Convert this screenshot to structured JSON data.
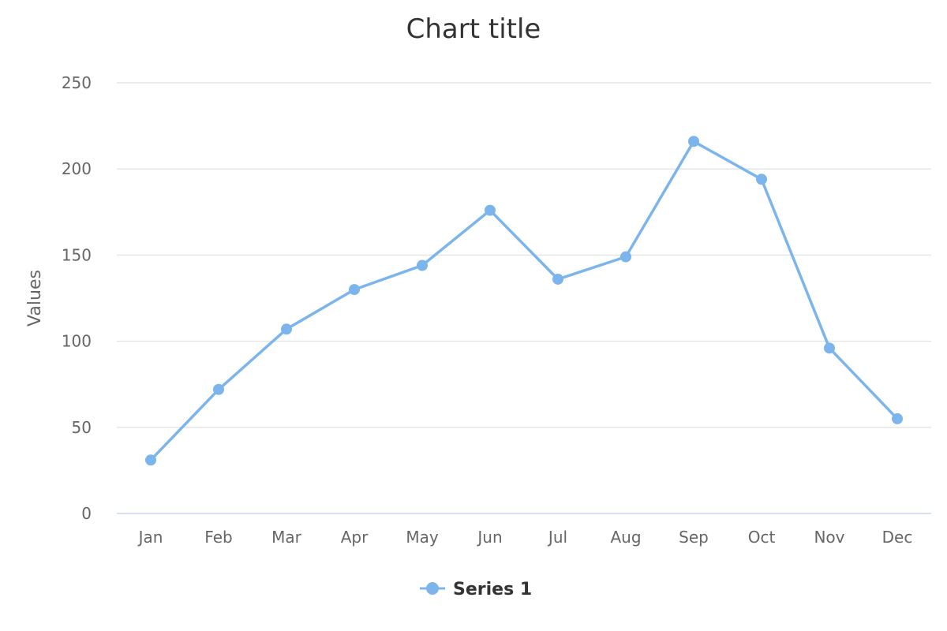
{
  "chart_data": {
    "type": "line",
    "title": "Chart title",
    "xlabel": "",
    "ylabel": "Values",
    "categories": [
      "Jan",
      "Feb",
      "Mar",
      "Apr",
      "May",
      "Jun",
      "Jul",
      "Aug",
      "Sep",
      "Oct",
      "Nov",
      "Dec"
    ],
    "series": [
      {
        "name": "Series 1",
        "values": [
          31,
          72,
          107,
          130,
          144,
          176,
          136,
          149,
          216,
          194,
          96,
          55
        ],
        "color": "#7cb5ec"
      }
    ],
    "ylim": [
      0,
      250
    ],
    "yticks": [
      "0",
      "50",
      "100",
      "150",
      "200",
      "250"
    ],
    "grid": true,
    "legend_position": "bottom-center"
  }
}
